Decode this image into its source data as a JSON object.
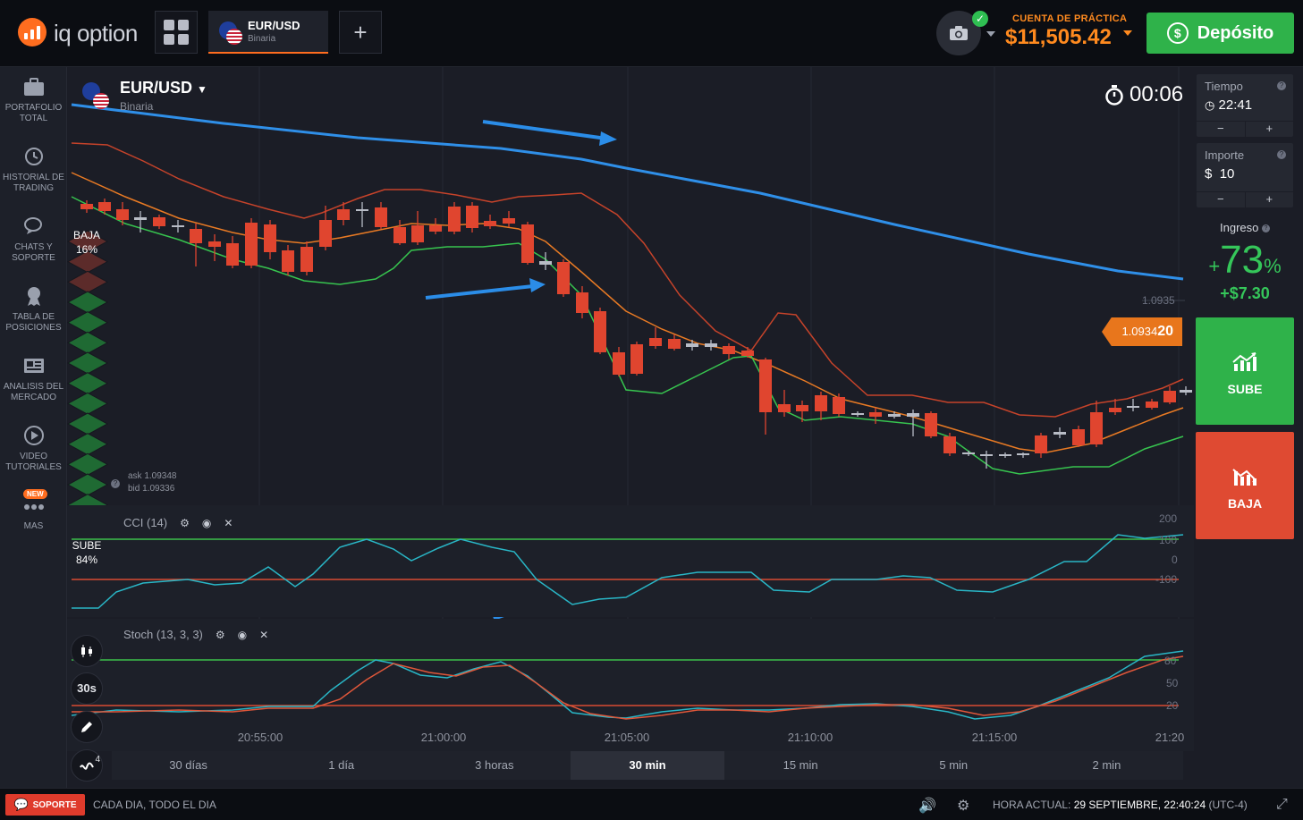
{
  "header": {
    "brand": "iq option",
    "asset_tab": {
      "pair": "EUR/USD",
      "type": "Binaria"
    },
    "account_label": "CUENTA DE PRÁCTICA",
    "balance": "$11,505.42",
    "deposit_label": "Depósito"
  },
  "sidebar": {
    "items": [
      {
        "label": "PORTAFOLIO TOTAL",
        "icon": "briefcase-icon"
      },
      {
        "label": "HISTORIAL DE TRADING",
        "icon": "history-icon"
      },
      {
        "label": "CHATS Y SOPORTE",
        "icon": "chat-icon"
      },
      {
        "label": "TABLA DE POSICIONES",
        "icon": "trophy-icon"
      },
      {
        "label": "ANALISIS DEL MERCADO",
        "icon": "news-icon"
      },
      {
        "label": "VIDEO TUTORIALES",
        "icon": "play-icon"
      },
      {
        "label": "MAS",
        "icon": "more-icon",
        "badge": "NEW"
      }
    ]
  },
  "chart": {
    "pair": "EUR/USD",
    "type": "Binaria",
    "timer": "00:06",
    "price_tag_main": "1.0934",
    "price_tag_end": "20",
    "price_level": "1.0935",
    "ask": "ask 1.09348",
    "bid": "bid 1.09336",
    "sentiment_down_label": "BAJA",
    "sentiment_down_pct": "16%",
    "sentiment_up_label": "SUBE",
    "sentiment_up_pct": "84%",
    "sentiment_up_value": 0.84,
    "time_labels": [
      "20:55:00",
      "21:00:00",
      "21:05:00",
      "21:10:00",
      "21:15:00",
      "21:20"
    ],
    "cci": {
      "label": "CCI (14)",
      "ticks": [
        "200",
        "100",
        "0",
        "-100"
      ]
    },
    "stoch": {
      "label": "Stoch (13, 3, 3)",
      "ticks": [
        "80",
        "50",
        "20"
      ]
    },
    "chart_type_btn": "candles-icon",
    "timeframe_btn": "30s",
    "draw_btn": "pencil-icon",
    "indicators_btn": {
      "icon": "indicators-icon",
      "count": "4"
    }
  },
  "chart_data": {
    "type": "candlestick",
    "candles_ohlc_note": "EUR/USD 30s candles with Bollinger bands, MA and indicators",
    "x_range": [
      "20:52:30",
      "21:20:30"
    ]
  },
  "timeframes": [
    "30 días",
    "1 día",
    "3 horas",
    "30 min",
    "15 min",
    "5 min",
    "2 min"
  ],
  "timeframe_active": "30 min",
  "trade_panel": {
    "time_label": "Tiempo",
    "time_value": "22:41",
    "amount_label": "Importe",
    "amount_currency": "$",
    "amount_value": "10",
    "minus": "−",
    "plus": "+",
    "income_label": "Ingreso",
    "income_pct": "73",
    "income_pct_sign": "+",
    "income_pct_unit": "%",
    "income_amount": "+$7.30",
    "up_label": "SUBE",
    "down_label": "BAJA"
  },
  "footer": {
    "support_label": "SOPORTE",
    "tagline": "CADA DIA, TODO EL DIA",
    "time_label": "HORA ACTUAL:",
    "time_value": "29 SEPTIEMBRE, 22:40:24",
    "timezone": "(UTC-4)"
  },
  "colors": {
    "up": "#2fb24a",
    "down": "#df4a32",
    "accent": "#ff6d1f",
    "ma_line": "#2f8fe8",
    "cci_line": "#29b6c6"
  }
}
